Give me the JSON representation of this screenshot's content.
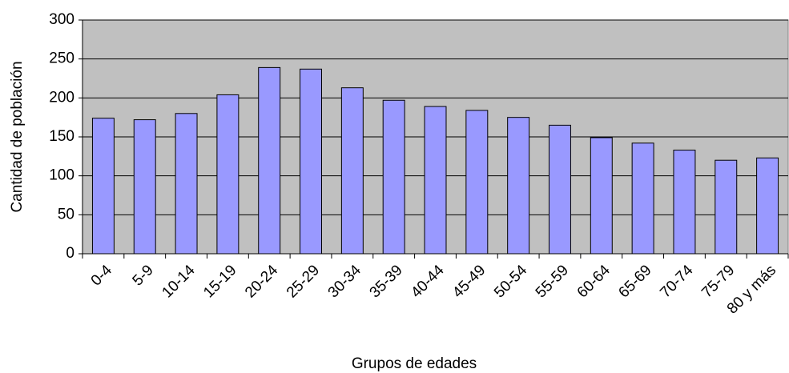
{
  "chart_data": {
    "type": "bar",
    "x_label": "Grupos de edades",
    "y_label": "Cantidad de población",
    "categories": [
      "0-4",
      "5-9",
      "10-14",
      "15-19",
      "20-24",
      "25-29",
      "30-34",
      "35-39",
      "40-44",
      "45-49",
      "50-54",
      "55-59",
      "60-64",
      "65-69",
      "70-74",
      "75-79",
      "80 y más"
    ],
    "values": [
      174,
      172,
      180,
      204,
      239,
      237,
      213,
      197,
      189,
      184,
      175,
      165,
      149,
      142,
      133,
      120,
      123
    ],
    "color": "#9999ff",
    "ylim": [
      0,
      300
    ],
    "yticks": [
      0,
      50,
      100,
      150,
      200,
      250,
      300
    ],
    "grid": true
  }
}
